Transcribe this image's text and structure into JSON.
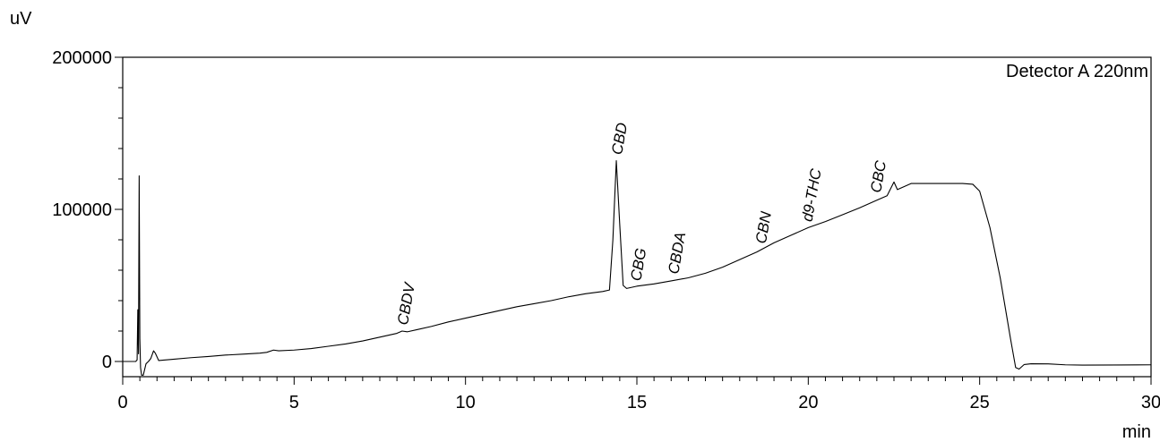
{
  "chart_data": {
    "type": "line",
    "xlabel": "min",
    "ylabel": "uV",
    "xlim": [
      0,
      30
    ],
    "ylim": [
      -10000,
      200000
    ],
    "x_ticks": [
      0,
      5,
      10,
      15,
      20,
      25,
      30
    ],
    "y_ticks": [
      0,
      100000,
      200000
    ],
    "annotation": "Detector A 220nm",
    "grid": false,
    "series": [
      {
        "points": [
          [
            0.0,
            0
          ],
          [
            0.38,
            0
          ],
          [
            0.42,
            1000
          ],
          [
            0.44,
            34000
          ],
          [
            0.46,
            5000
          ],
          [
            0.48,
            122000
          ],
          [
            0.5,
            15000
          ],
          [
            0.52,
            -4000
          ],
          [
            0.55,
            -9000
          ],
          [
            0.6,
            -9000
          ],
          [
            0.68,
            -1500
          ],
          [
            0.75,
            0
          ],
          [
            0.82,
            2000
          ],
          [
            0.9,
            7000
          ],
          [
            0.95,
            5500
          ],
          [
            1.05,
            600
          ],
          [
            1.5,
            1500
          ],
          [
            2.0,
            2500
          ],
          [
            2.5,
            3300
          ],
          [
            3.0,
            4200
          ],
          [
            3.5,
            4800
          ],
          [
            4.0,
            5500
          ],
          [
            4.2,
            6000
          ],
          [
            4.4,
            7500
          ],
          [
            4.55,
            7000
          ],
          [
            5.0,
            7500
          ],
          [
            5.5,
            8500
          ],
          [
            6.0,
            10000
          ],
          [
            6.5,
            11500
          ],
          [
            7.0,
            13500
          ],
          [
            7.5,
            16000
          ],
          [
            8.0,
            18500
          ],
          [
            8.15,
            20000
          ],
          [
            8.3,
            19500
          ],
          [
            8.6,
            21000
          ],
          [
            9.0,
            23000
          ],
          [
            9.5,
            26000
          ],
          [
            10.0,
            28500
          ],
          [
            10.5,
            31000
          ],
          [
            11.0,
            33500
          ],
          [
            11.5,
            36000
          ],
          [
            12.0,
            38000
          ],
          [
            12.5,
            40000
          ],
          [
            13.0,
            42500
          ],
          [
            13.5,
            44500
          ],
          [
            14.0,
            46000
          ],
          [
            14.2,
            47000
          ],
          [
            14.3,
            80000
          ],
          [
            14.4,
            132000
          ],
          [
            14.5,
            90000
          ],
          [
            14.6,
            50000
          ],
          [
            14.7,
            48000
          ],
          [
            15.0,
            49500
          ],
          [
            15.5,
            51000
          ],
          [
            16.0,
            53000
          ],
          [
            16.5,
            55000
          ],
          [
            17.0,
            58000
          ],
          [
            17.5,
            62000
          ],
          [
            18.0,
            67000
          ],
          [
            18.5,
            72000
          ],
          [
            19.0,
            78000
          ],
          [
            19.5,
            83000
          ],
          [
            20.0,
            88000
          ],
          [
            20.5,
            92000
          ],
          [
            21.0,
            96500
          ],
          [
            21.5,
            101000
          ],
          [
            22.0,
            106000
          ],
          [
            22.3,
            109000
          ],
          [
            22.5,
            118000
          ],
          [
            22.6,
            113000
          ],
          [
            22.8,
            115000
          ],
          [
            23.0,
            117000
          ],
          [
            23.5,
            117000
          ],
          [
            24.0,
            117000
          ],
          [
            24.5,
            117000
          ],
          [
            24.8,
            116500
          ],
          [
            25.0,
            112000
          ],
          [
            25.3,
            88000
          ],
          [
            25.6,
            55000
          ],
          [
            25.9,
            15000
          ],
          [
            26.05,
            -4000
          ],
          [
            26.15,
            -5000
          ],
          [
            26.3,
            -2000
          ],
          [
            26.5,
            -1500
          ],
          [
            27.0,
            -1600
          ],
          [
            27.5,
            -2200
          ],
          [
            28.0,
            -2400
          ],
          [
            29.0,
            -2300
          ],
          [
            30.0,
            -2200
          ]
        ]
      }
    ],
    "peaks": [
      {
        "label": "CBDV",
        "x": 8.15,
        "y": 20000
      },
      {
        "label": "CBD",
        "x": 14.4,
        "y": 132000
      },
      {
        "label": "CBG",
        "x": 14.95,
        "y": 49000
      },
      {
        "label": "CBDA",
        "x": 16.05,
        "y": 53500
      },
      {
        "label": "CBN",
        "x": 18.6,
        "y": 73500
      },
      {
        "label": "d9-THC",
        "x": 19.95,
        "y": 88000
      },
      {
        "label": "CBC",
        "x": 21.95,
        "y": 107000
      }
    ]
  }
}
